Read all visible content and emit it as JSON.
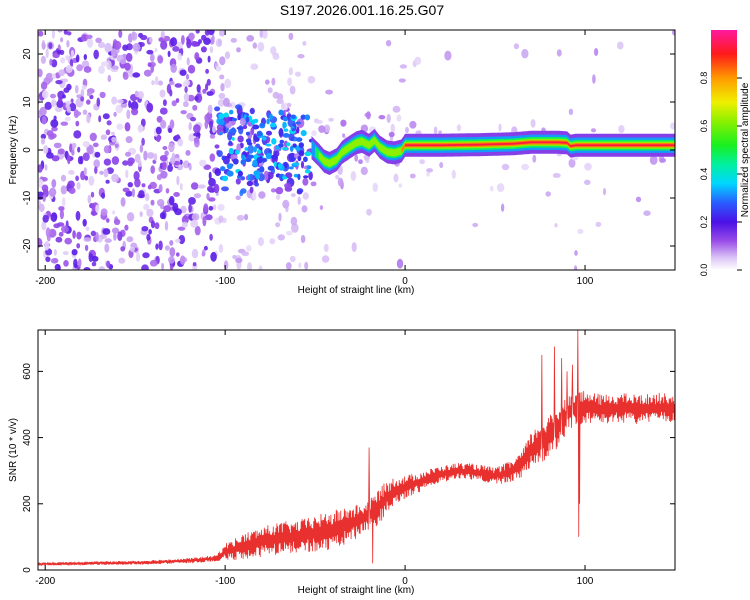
{
  "title": "S197.2026.001.16.25.G07",
  "colors": {
    "snr_line": "#e8302e",
    "axis": "#000000",
    "background": "#ffffff"
  },
  "chart_data": [
    {
      "type": "heatmap",
      "title": "S197.2026.001.16.25.G07",
      "xlabel": "Height of straight line (km)",
      "ylabel": "Frequency (Hz)",
      "xlim": [
        -204,
        150
      ],
      "ylim": [
        -25,
        25
      ],
      "x_ticks": [
        -200,
        -100,
        0,
        100
      ],
      "y_ticks": [
        -20,
        -10,
        0,
        10,
        20
      ],
      "x_tick_labels": [
        "-200",
        "-100",
        "0",
        "100"
      ],
      "y_tick_labels": [
        "-20",
        "-10",
        "0",
        "10",
        "20"
      ],
      "colorbar": {
        "label": "Normalized spectral amplitude",
        "range": [
          0,
          1
        ],
        "ticks": [
          0.0,
          0.2,
          0.4,
          0.6,
          0.8
        ],
        "tick_labels": [
          "0.0",
          "0.2",
          "0.4",
          "0.6",
          "0.8"
        ],
        "colormap": "rainbow (white-purple-blue-cyan-green-yellow-orange-red-magenta)"
      },
      "regions": [
        {
          "x_range": [
            -204,
            -105
          ],
          "description": "scattered low-amplitude noise (0.0-0.2)",
          "freq_range": [
            -25,
            25
          ]
        },
        {
          "x_range": [
            -105,
            -52
          ],
          "description": "mixed noise with blue/cyan patches (0.1-0.35)",
          "freq_range": [
            -10,
            9
          ]
        },
        {
          "x_range": [
            -52,
            0
          ],
          "description": "emerging wavy signal near 0 Hz (0.2-0.7)"
        },
        {
          "x_range": [
            0,
            150
          ],
          "description": "steady narrow-band signal at ~1 Hz (0.8-1.0)"
        }
      ],
      "ridge": {
        "x": [
          -52,
          -48,
          -45,
          -42,
          -38,
          -35,
          -30,
          -27,
          -24,
          -20,
          -17,
          -14,
          -10,
          -6,
          -2,
          0,
          20,
          40,
          60,
          70,
          85,
          90,
          92,
          95,
          150
        ],
        "frequency": [
          0.5,
          -1.0,
          -2.3,
          -2.8,
          -2.0,
          -0.5,
          0.8,
          1.5,
          1.8,
          1.0,
          2.0,
          0.6,
          -0.4,
          -0.6,
          -0.2,
          1.0,
          1.0,
          1.1,
          1.3,
          1.6,
          1.6,
          1.5,
          0.8,
          1.0,
          1.0
        ]
      }
    },
    {
      "type": "line",
      "xlabel": "Height of straight line (km)",
      "ylabel": "SNR (10 * v/v)",
      "xlim": [
        -204,
        150
      ],
      "ylim": [
        0,
        725
      ],
      "x_ticks": [
        -200,
        -100,
        0,
        100
      ],
      "y_ticks": [
        0,
        200,
        400,
        600
      ],
      "x_tick_labels": [
        "-200",
        "-100",
        "0",
        "100"
      ],
      "y_tick_labels": [
        "0",
        "200",
        "400",
        "600"
      ],
      "series": [
        {
          "name": "SNR",
          "x": [
            -204,
            -180,
            -150,
            -120,
            -105,
            -100,
            -90,
            -80,
            -70,
            -60,
            -50,
            -40,
            -30,
            -25,
            -20,
            -15,
            -10,
            -5,
            0,
            10,
            20,
            30,
            40,
            50,
            55,
            60,
            65,
            70,
            75,
            80,
            85,
            90,
            95,
            100,
            110,
            120,
            130,
            140,
            150
          ],
          "y": [
            18,
            20,
            22,
            28,
            35,
            55,
            70,
            85,
            95,
            100,
            110,
            120,
            140,
            150,
            165,
            190,
            220,
            240,
            250,
            270,
            290,
            300,
            295,
            285,
            290,
            300,
            320,
            360,
            385,
            400,
            430,
            470,
            490,
            490,
            485,
            490,
            485,
            490,
            490
          ],
          "oscillation": [
            4,
            5,
            6,
            8,
            10,
            25,
            40,
            45,
            50,
            50,
            55,
            60,
            55,
            50,
            45,
            55,
            50,
            45,
            35,
            30,
            25,
            25,
            25,
            25,
            30,
            35,
            40,
            55,
            60,
            65,
            65,
            60,
            55,
            50,
            45,
            45,
            45,
            45,
            45
          ],
          "spikes": [
            {
              "x": -20,
              "y": 370
            },
            {
              "x": -18,
              "y": 20
            },
            {
              "x": 76,
              "y": 650
            },
            {
              "x": 83,
              "y": 675
            },
            {
              "x": 87,
              "y": 640
            },
            {
              "x": 90,
              "y": 600
            },
            {
              "x": 93,
              "y": 620
            },
            {
              "x": 96,
              "y": 730
            },
            {
              "x": 97,
              "y": 200
            },
            {
              "x": 96.5,
              "y": 100
            }
          ]
        }
      ]
    }
  ]
}
